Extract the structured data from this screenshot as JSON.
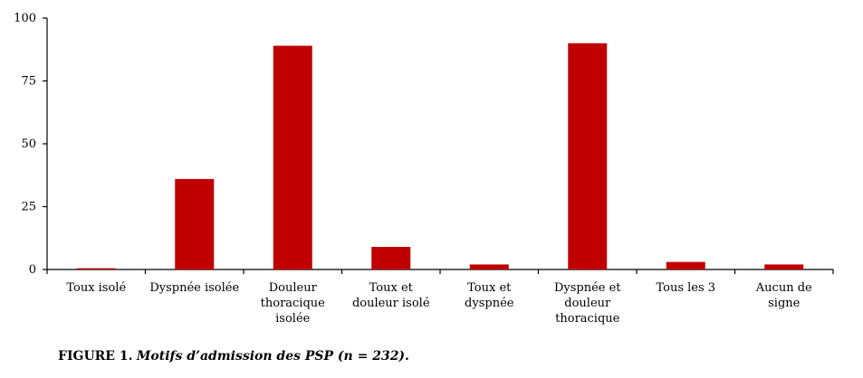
{
  "chart_data": {
    "type": "bar",
    "categories": [
      "Toux isolé",
      "Dyspnée isolée",
      "Douleur thoracique isolée",
      "Toux et douleur isolé",
      "Toux et dyspnée",
      "Dyspnée et douleur thoracique",
      "Tous les 3",
      "Aucun de signe"
    ],
    "category_label_lines": [
      [
        "Toux isolé"
      ],
      [
        "Dyspnée isolée"
      ],
      [
        "Douleur",
        "thoracique",
        "isolée"
      ],
      [
        "Toux et",
        "douleur isolé"
      ],
      [
        "Toux et",
        "dyspnée"
      ],
      [
        "Dyspnée et",
        "douleur",
        "thoracique"
      ],
      [
        "Tous les 3"
      ],
      [
        "Aucun de",
        "signe"
      ]
    ],
    "values": [
      0.5,
      36,
      89,
      9,
      2,
      90,
      3,
      2
    ],
    "yticks": [
      "0",
      "25",
      "50",
      "75",
      "100"
    ],
    "ylim": [
      0,
      100
    ],
    "bar_color": "#c00000",
    "grid": false,
    "title": "",
    "xlabel": "",
    "ylabel": ""
  },
  "caption": {
    "number": "FIGURE 1.",
    "text": "Motifs d’admission des PSP (n = 232)."
  }
}
